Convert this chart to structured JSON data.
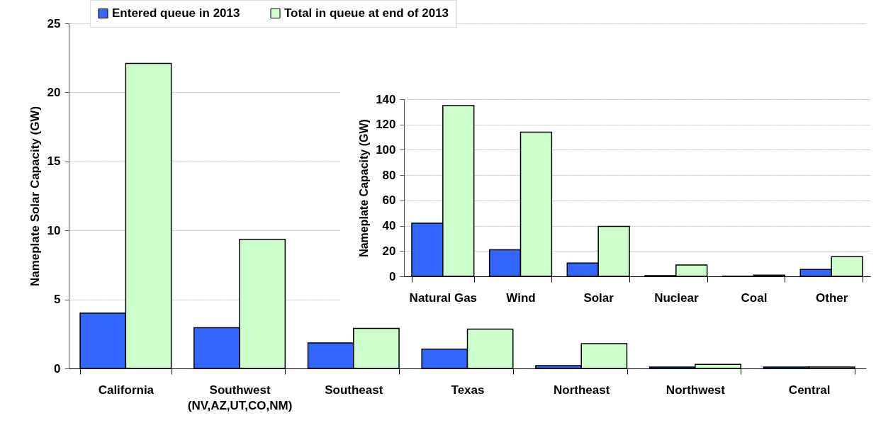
{
  "chart_data": [
    {
      "type": "bar",
      "ylabel": "Nameplate Solar Capacity (GW)",
      "categories": [
        "California",
        "Southwest\n(NV,AZ,UT,CO,NM)",
        "Southeast",
        "Texas",
        "Northeast",
        "Northwest",
        "Central"
      ],
      "series": [
        {
          "name": "Entered queue in 2013",
          "color": "#3366ff",
          "values": [
            4.0,
            2.95,
            1.85,
            1.4,
            0.2,
            0.1,
            0.1
          ]
        },
        {
          "name": "Total in queue at end of 2013",
          "color": "#ccffcc",
          "values": [
            22.1,
            9.35,
            2.9,
            2.85,
            1.8,
            0.3,
            0.1
          ]
        }
      ],
      "ylim": [
        0,
        25
      ],
      "yticks": [
        0,
        5,
        10,
        15,
        20,
        25
      ],
      "grid": "y",
      "legend": "top"
    },
    {
      "type": "bar",
      "ylabel": "Nameplate Capacity (GW)",
      "categories": [
        "Natural Gas",
        "Wind",
        "Solar",
        "Nuclear",
        "Coal",
        "Other"
      ],
      "series": [
        {
          "color": "#3366ff",
          "values": [
            42,
            21,
            10.5,
            0.5,
            0.2,
            5.5
          ]
        },
        {
          "color": "#ccffcc",
          "values": [
            135,
            114,
            39.5,
            9,
            1,
            15.5
          ]
        }
      ],
      "ylim": [
        0,
        140
      ],
      "yticks": [
        0,
        20,
        40,
        60,
        80,
        100,
        120,
        140
      ],
      "grid": "y"
    }
  ]
}
